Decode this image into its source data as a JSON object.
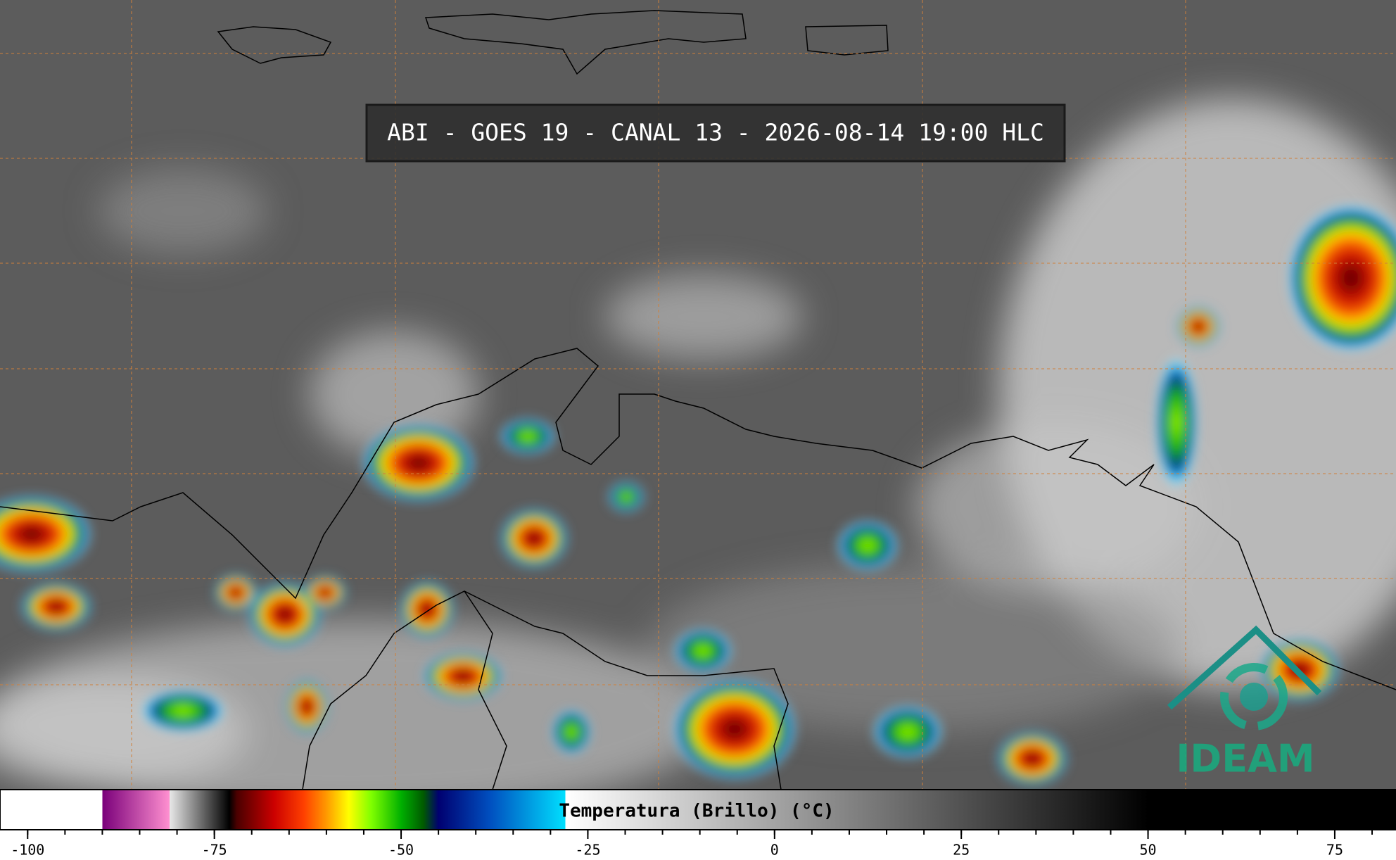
{
  "title": "ABI - GOES 19 - CANAL 13 - 2026-08-14 19:00 HLC",
  "colorbar": {
    "label": "Temperatura (Brillo) (°C)",
    "lim": [
      -103.7,
      83.2
    ],
    "ticks": [
      -100,
      -75,
      -50,
      -25,
      0,
      25,
      50,
      75
    ],
    "minor_ticks": [
      -100,
      -95,
      -90,
      -85,
      -80,
      -75,
      -70,
      -65,
      -60,
      -55,
      -50,
      -45,
      -40,
      -35,
      -30,
      -25,
      -20,
      -15,
      -10,
      -5,
      0,
      5,
      10,
      15,
      20,
      25,
      30,
      35,
      40,
      45,
      50,
      55,
      60,
      65,
      70,
      75,
      80
    ],
    "stops": [
      {
        "value": -103.7,
        "color": "#ffffff"
      },
      {
        "value": -90,
        "color": "#ffffff"
      },
      {
        "value": -90,
        "color": "#7a007a"
      },
      {
        "value": -81,
        "color": "#ff90d0"
      },
      {
        "value": -81,
        "color": "#e8e8e8"
      },
      {
        "value": -73,
        "color": "#000000"
      },
      {
        "value": -72,
        "color": "#4a0000"
      },
      {
        "value": -67,
        "color": "#cc0000"
      },
      {
        "value": -63,
        "color": "#ff4000"
      },
      {
        "value": -60,
        "color": "#ff9900"
      },
      {
        "value": -57,
        "color": "#ffff00"
      },
      {
        "value": -54,
        "color": "#80ff00"
      },
      {
        "value": -50,
        "color": "#00b000"
      },
      {
        "value": -47,
        "color": "#005a00"
      },
      {
        "value": -45,
        "color": "#000070"
      },
      {
        "value": -38,
        "color": "#0050c0"
      },
      {
        "value": -28,
        "color": "#00e0ff"
      },
      {
        "value": -28,
        "color": "#ffffff"
      },
      {
        "value": 50,
        "color": "#000000"
      },
      {
        "value": 83.2,
        "color": "#000000"
      }
    ]
  },
  "logo": "IDEAM"
}
